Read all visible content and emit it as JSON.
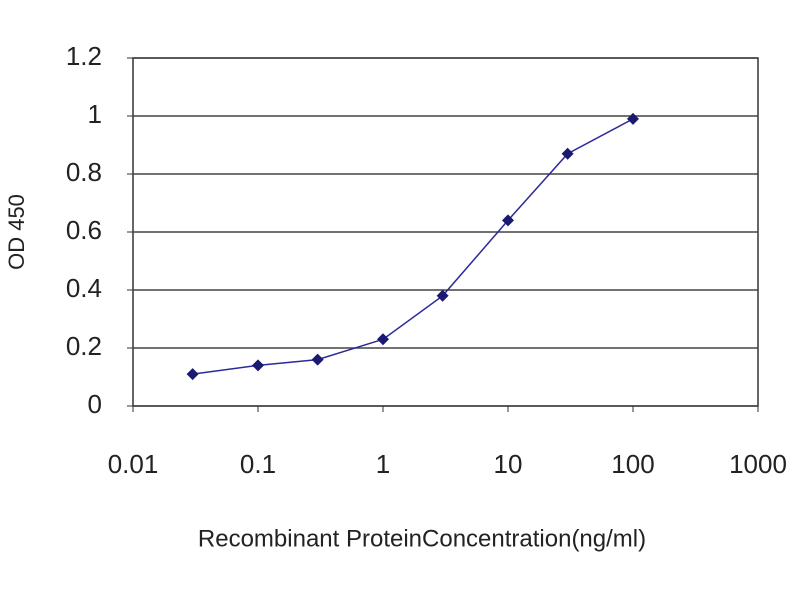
{
  "chart_data": {
    "type": "line",
    "x_label": "Recombinant ProteinConcentration(ng/ml)",
    "y_label": "OD 450",
    "x": [
      0.03,
      0.1,
      0.3,
      1,
      3,
      10,
      30,
      100
    ],
    "series": [
      {
        "color": "#2a2a9a",
        "values": [
          0.11,
          0.14,
          0.16,
          0.23,
          0.38,
          0.64,
          0.87,
          0.99
        ]
      }
    ],
    "x_log": true,
    "xlim": [
      0.01,
      1000
    ],
    "xticks": [
      0.01,
      0.1,
      1,
      10,
      100,
      1000
    ],
    "ylim": [
      0,
      1.2
    ],
    "yticks": [
      0,
      0.2,
      0.4,
      0.6,
      0.8,
      1,
      1.2
    ],
    "grid": true
  }
}
